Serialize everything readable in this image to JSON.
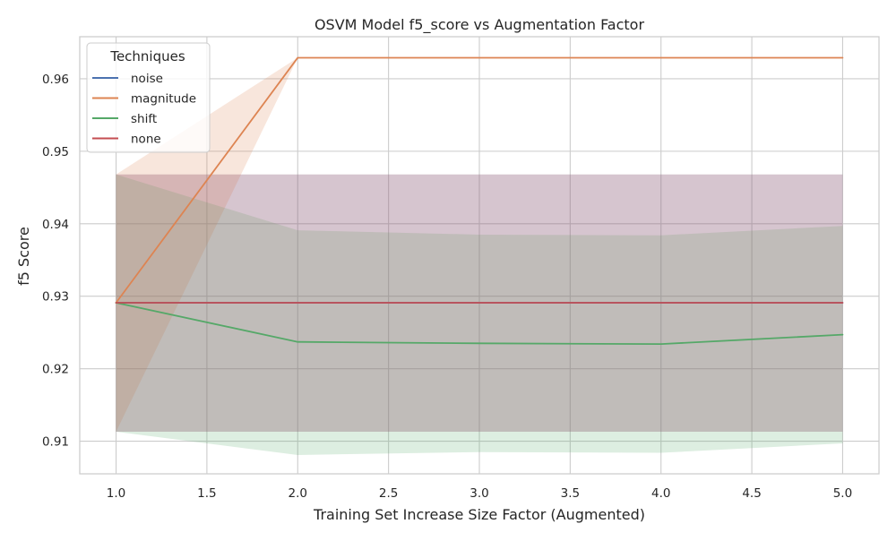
{
  "chart_data": {
    "type": "line",
    "title": "OSVM Model f5_score vs Augmentation Factor",
    "xlabel": "Training Set Increase Size Factor (Augmented)",
    "ylabel": "f5 Score",
    "xlim": [
      0.8,
      5.2
    ],
    "ylim": [
      0.9055,
      0.9658
    ],
    "x_ticks": [
      1.0,
      1.5,
      2.0,
      2.5,
      3.0,
      3.5,
      4.0,
      4.5,
      5.0
    ],
    "x_tick_labels": [
      "1.0",
      "1.5",
      "2.0",
      "2.5",
      "3.0",
      "3.5",
      "4.0",
      "4.5",
      "5.0"
    ],
    "y_ticks": [
      0.91,
      0.92,
      0.93,
      0.94,
      0.95,
      0.96
    ],
    "y_tick_labels": [
      "0.91",
      "0.92",
      "0.93",
      "0.94",
      "0.95",
      "0.96"
    ],
    "grid": true,
    "legend": {
      "title": "Techniques",
      "placement": "top-left"
    },
    "x": [
      1,
      2,
      3,
      4,
      5
    ],
    "series": [
      {
        "name": "noise",
        "color": "#4c72b0",
        "values": [
          0.9291,
          0.9291,
          0.9291,
          0.9291,
          0.9291
        ],
        "band_lower": [
          0.9113,
          0.9113,
          0.9113,
          0.9113,
          0.9113
        ],
        "band_upper": [
          0.9468,
          0.9468,
          0.9468,
          0.9468,
          0.9468
        ]
      },
      {
        "name": "magnitude",
        "color": "#dd8452",
        "values": [
          0.9291,
          0.9629,
          0.9629,
          0.9629,
          0.9629
        ],
        "band_lower": [
          0.9113,
          0.9629,
          0.9629,
          0.9629,
          0.9629
        ],
        "band_upper": [
          0.9468,
          0.9629,
          0.9629,
          0.9629,
          0.9629
        ]
      },
      {
        "name": "shift",
        "color": "#55a868",
        "values": [
          0.9291,
          0.9237,
          0.9235,
          0.9234,
          0.9247
        ],
        "band_lower": [
          0.9113,
          0.9081,
          0.9085,
          0.9084,
          0.9097
        ],
        "band_upper": [
          0.9468,
          0.9391,
          0.9385,
          0.9384,
          0.9397
        ]
      },
      {
        "name": "none",
        "color": "#c44e52",
        "values": [
          0.9291,
          0.9291,
          0.9291,
          0.9291,
          0.9291
        ],
        "band_lower": [
          0.9113,
          0.9113,
          0.9113,
          0.9113,
          0.9113
        ],
        "band_upper": [
          0.9468,
          0.9468,
          0.9468,
          0.9468,
          0.9468
        ]
      }
    ]
  }
}
